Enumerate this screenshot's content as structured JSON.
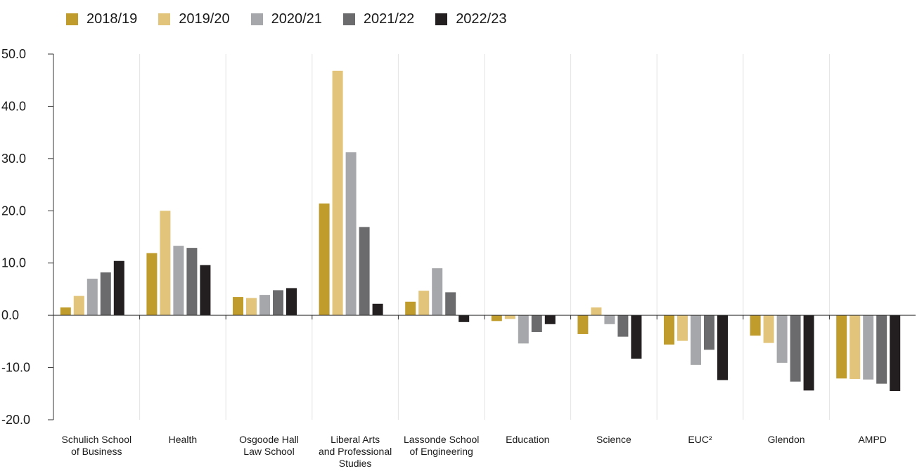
{
  "chart_data": {
    "type": "bar",
    "categories": [
      [
        "Schulich School",
        "of Business"
      ],
      [
        "Health"
      ],
      [
        "Osgoode Hall",
        "Law School"
      ],
      [
        "Liberal Arts",
        "and Professional",
        "Studies"
      ],
      [
        "Lassonde School",
        "of Engineering"
      ],
      [
        "Education"
      ],
      [
        "Science"
      ],
      [
        "EUC²"
      ],
      [
        "Glendon"
      ],
      [
        "AMPD"
      ]
    ],
    "series": [
      {
        "name": "2018/19",
        "color": "#c09c2c",
        "values": [
          1.5,
          11.9,
          3.5,
          21.4,
          2.6,
          -1.1,
          -3.6,
          -5.6,
          -3.9,
          -12.1
        ]
      },
      {
        "name": "2019/20",
        "color": "#e2c47a",
        "values": [
          3.7,
          20.0,
          3.3,
          46.8,
          4.7,
          -0.7,
          1.5,
          -4.9,
          -5.3,
          -12.2
        ]
      },
      {
        "name": "2020/21",
        "color": "#a6a7aa",
        "values": [
          7.0,
          13.3,
          3.9,
          31.2,
          9.0,
          -5.4,
          -1.7,
          -9.5,
          -9.1,
          -12.3
        ]
      },
      {
        "name": "2021/22",
        "color": "#6b6b6d",
        "values": [
          8.2,
          12.9,
          4.8,
          16.9,
          4.4,
          -3.2,
          -4.1,
          -6.6,
          -12.7,
          -13.1
        ]
      },
      {
        "name": "2022/23",
        "color": "#231f20",
        "values": [
          10.4,
          9.6,
          5.2,
          2.2,
          -1.3,
          -1.7,
          -8.3,
          -12.4,
          -14.4,
          -14.5
        ]
      }
    ],
    "yticks": [
      "50.0",
      "40.0",
      "30.0",
      "20.0",
      "10.0",
      "0.0",
      "-10.0",
      "-20.0"
    ],
    "ylim": [
      -20,
      50
    ],
    "grid": "vertical separators",
    "legend_position": "top-left"
  }
}
